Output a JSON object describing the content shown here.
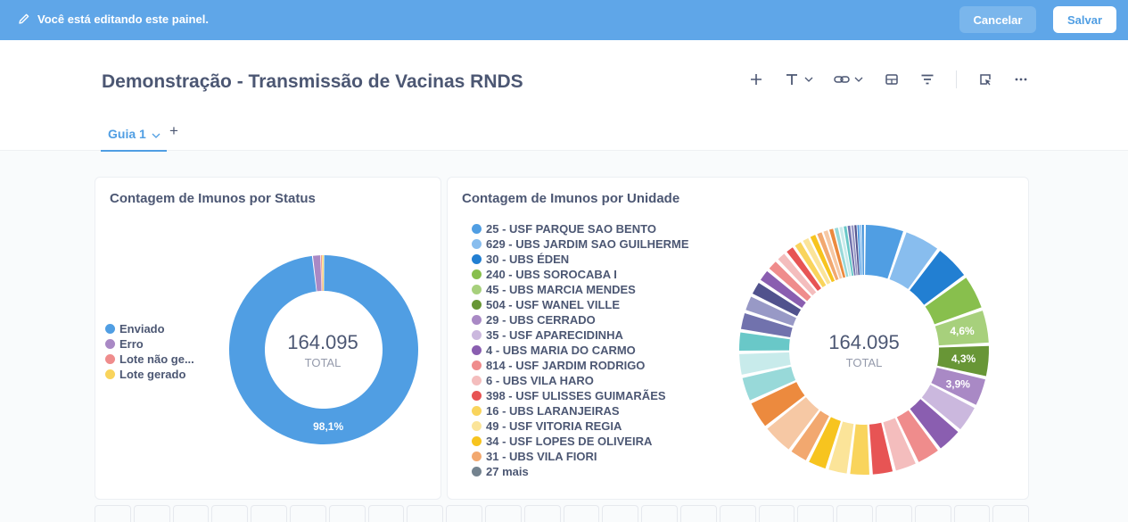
{
  "edit_bar": {
    "message": "Você está editando este painel.",
    "cancel_label": "Cancelar",
    "save_label": "Salvar"
  },
  "dashboard": {
    "title": "Demonstração - Transmissão de Vacinas RNDS",
    "toolbar_icons": [
      "add-icon",
      "text-icon",
      "link-icon",
      "section-icon",
      "filter-icon",
      "action-icon",
      "more-icon"
    ]
  },
  "tabs": [
    {
      "label": "Guia 1"
    }
  ],
  "colors": {
    "accent": "#509ee3",
    "edit_bar": "#5fa6e8"
  },
  "chart_data": [
    {
      "type": "pie",
      "title": "Contagem de Imunos por Status",
      "total_value": "164.095",
      "total_label": "TOTAL",
      "legend": [
        {
          "name": "Enviado",
          "color": "#509ee3"
        },
        {
          "name": "Erro",
          "color": "#a989c5"
        },
        {
          "name": "Lote não ge...",
          "color": "#ef8c8c"
        },
        {
          "name": "Lote gerado",
          "color": "#f9d45c"
        }
      ],
      "slices": [
        {
          "name": "Enviado",
          "percent": 98.1,
          "label": "98,1%"
        },
        {
          "name": "Erro",
          "percent": 1.4
        },
        {
          "name": "Lote não ge...",
          "percent": 0.2
        },
        {
          "name": "Lote gerado",
          "percent": 0.3
        }
      ]
    },
    {
      "type": "pie",
      "title": "Contagem de Imunos por Unidade",
      "total_value": "164.095",
      "total_label": "TOTAL",
      "legend": [
        {
          "name": "25 - USF PARQUE SAO BENTO",
          "color": "#509ee3"
        },
        {
          "name": "629 - UBS JARDIM SAO GUILHERME",
          "color": "#88bdee"
        },
        {
          "name": "30 - UBS ÉDEN",
          "color": "#227fd2"
        },
        {
          "name": "240 - UBS SOROCABA I",
          "color": "#88bf4d"
        },
        {
          "name": "45 - UBS MARCIA MENDES",
          "color": "#a7d07c"
        },
        {
          "name": "504 - USF WANEL VILLE",
          "color": "#689636"
        },
        {
          "name": "29 - UBS CERRADO",
          "color": "#a989c5"
        },
        {
          "name": "35 - USF APARECIDINHA",
          "color": "#cbb8de"
        },
        {
          "name": "4 - UBS MARIA DO CARMO",
          "color": "#8a5eb0"
        },
        {
          "name": "814 - USF JARDIM RODRIGO",
          "color": "#ef8c8c"
        },
        {
          "name": "6 - UBS VILA HARO",
          "color": "#f4bdbd"
        },
        {
          "name": "398 - USF ULISSES GUIMARÃES",
          "color": "#e75454"
        },
        {
          "name": "16 - UBS LARANJEIRAS",
          "color": "#f9d45c"
        },
        {
          "name": "49 - USF VITORIA REGIA",
          "color": "#fbe499"
        },
        {
          "name": "34 - USF LOPES DE OLIVEIRA",
          "color": "#f7c41f"
        },
        {
          "name": "31 - UBS VILA FIORI",
          "color": "#f2a86f"
        },
        {
          "name": "27 mais",
          "color": "#74838f"
        }
      ],
      "slices": [
        {
          "name": "25 - USF PARQUE SAO BENTO",
          "percent": 5.3
        },
        {
          "name": "629 - UBS JARDIM SAO GUILHERME",
          "percent": 4.9
        },
        {
          "name": "30 - UBS ÉDEN",
          "percent": 4.8
        },
        {
          "name": "240 - UBS SOROCABA I",
          "percent": 4.7
        },
        {
          "name": "45 - UBS MARCIA MENDES",
          "percent": 4.6,
          "label": "4,6%"
        },
        {
          "name": "504 - USF WANEL VILLE",
          "percent": 4.3,
          "label": "4,3%"
        },
        {
          "name": "29 - UBS CERRADO",
          "percent": 3.9,
          "label": "3,9%"
        },
        {
          "name": "35 - USF APARECIDINHA",
          "percent": 3.7
        },
        {
          "name": "4 - UBS MARIA DO CARMO",
          "percent": 3.5
        },
        {
          "name": "814 - USF JARDIM RODRIGO",
          "percent": 3.3
        },
        {
          "name": "6 - UBS VILA HARO",
          "percent": 3.1
        },
        {
          "name": "398 - USF ULISSES GUIMARÃES",
          "percent": 3.0
        },
        {
          "name": "16 - UBS LARANJEIRAS",
          "percent": 2.9
        },
        {
          "name": "49 - USF VITORIA REGIA",
          "percent": 2.8
        },
        {
          "name": "34 - USF LOPES DE OLIVEIRA",
          "percent": 2.7
        },
        {
          "name": "31 - UBS VILA FIORI",
          "percent": 2.6
        },
        {
          "name": "27 mais",
          "percent": 39.9
        }
      ]
    }
  ]
}
